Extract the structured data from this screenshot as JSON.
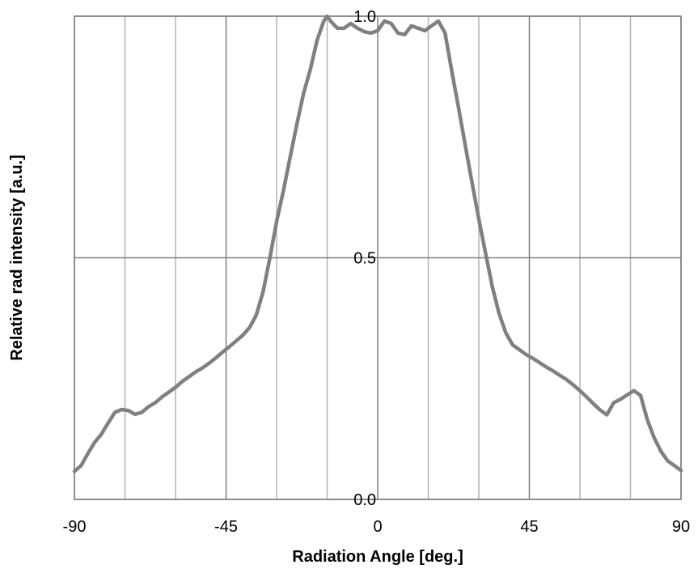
{
  "chart_data": {
    "type": "line",
    "title": "",
    "xlabel": "Radiation Angle [deg.]",
    "ylabel": "Relative rad intensity [a.u.]",
    "xlim": [
      -90,
      90
    ],
    "ylim": [
      0,
      1
    ],
    "x_ticks": [
      -90,
      -45,
      0,
      45,
      90
    ],
    "x_tick_labels": [
      "-90",
      "-45",
      "0",
      "45",
      "90"
    ],
    "x_minor_gridlines": [
      -75,
      -60,
      -30,
      -15,
      15,
      30,
      60,
      75
    ],
    "y_ticks": [
      0,
      0.5,
      1
    ],
    "y_tick_labels": [
      "0.0",
      "0.5",
      "1.0"
    ],
    "grid": true,
    "legend": "none",
    "series": [
      {
        "color": "#808080",
        "x": [
          -90,
          -88,
          -86,
          -84,
          -82,
          -80,
          -78,
          -76,
          -74,
          -72,
          -70,
          -68,
          -66,
          -64,
          -62,
          -60,
          -58,
          -56,
          -54,
          -52,
          -50,
          -48,
          -46,
          -44,
          -42,
          -40,
          -38,
          -36,
          -34,
          -32,
          -30,
          -28,
          -26,
          -24,
          -22,
          -20,
          -18,
          -16,
          -15,
          -14,
          -12,
          -10,
          -8,
          -6,
          -4,
          -2,
          0,
          2,
          4,
          6,
          8,
          10,
          12,
          14,
          16,
          18,
          20,
          22,
          24,
          26,
          28,
          30,
          32,
          34,
          36,
          38,
          40,
          42,
          44,
          46,
          48,
          50,
          52,
          54,
          56,
          58,
          60,
          62,
          64,
          66,
          68,
          70,
          72,
          74,
          76,
          78,
          80,
          82,
          84,
          86,
          88,
          90
        ],
        "y": [
          0.058,
          0.07,
          0.095,
          0.118,
          0.135,
          0.158,
          0.18,
          0.186,
          0.184,
          0.176,
          0.18,
          0.192,
          0.2,
          0.212,
          0.222,
          0.232,
          0.244,
          0.254,
          0.264,
          0.272,
          0.282,
          0.293,
          0.305,
          0.316,
          0.328,
          0.34,
          0.356,
          0.382,
          0.43,
          0.5,
          0.575,
          0.638,
          0.708,
          0.776,
          0.84,
          0.89,
          0.95,
          0.99,
          1.0,
          0.99,
          0.975,
          0.975,
          0.985,
          0.975,
          0.968,
          0.965,
          0.97,
          0.99,
          0.985,
          0.965,
          0.962,
          0.98,
          0.975,
          0.97,
          0.98,
          0.99,
          0.965,
          0.885,
          0.81,
          0.732,
          0.655,
          0.58,
          0.51,
          0.44,
          0.385,
          0.345,
          0.32,
          0.31,
          0.3,
          0.292,
          0.283,
          0.274,
          0.266,
          0.257,
          0.248,
          0.237,
          0.225,
          0.212,
          0.198,
          0.185,
          0.175,
          0.2,
          0.207,
          0.216,
          0.225,
          0.215,
          0.165,
          0.128,
          0.1,
          0.08,
          0.07,
          0.06
        ]
      }
    ]
  }
}
